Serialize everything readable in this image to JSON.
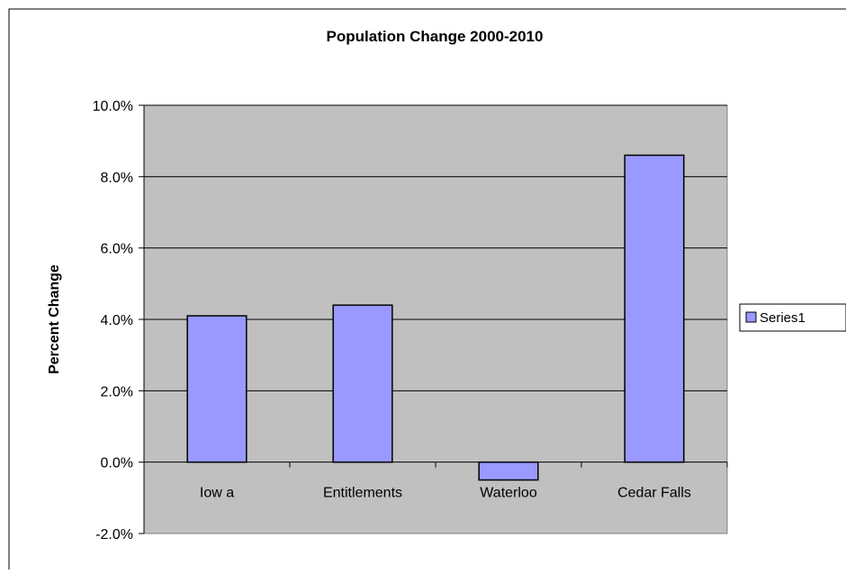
{
  "chart_data": {
    "type": "bar",
    "title": "Population Change 2000-2010",
    "xlabel": "",
    "ylabel": "Percent Change",
    "categories": [
      "Iow a",
      "Entitlements",
      "Waterloo",
      "Cedar Falls"
    ],
    "series": [
      {
        "name": "Series1",
        "values": [
          4.1,
          4.4,
          -0.5,
          8.6
        ],
        "color": "#9999ff"
      }
    ],
    "ylim": [
      -2,
      10
    ],
    "yticks": [
      -2,
      0,
      2,
      4,
      6,
      8,
      10
    ],
    "ytick_labels": [
      "-2.0%",
      "0.0%",
      "2.0%",
      "4.0%",
      "6.0%",
      "8.0%",
      "10.0%"
    ],
    "grid": true,
    "legend_position": "right",
    "plot_background": "#c0c0c0",
    "bar_color": "#9999ff"
  }
}
